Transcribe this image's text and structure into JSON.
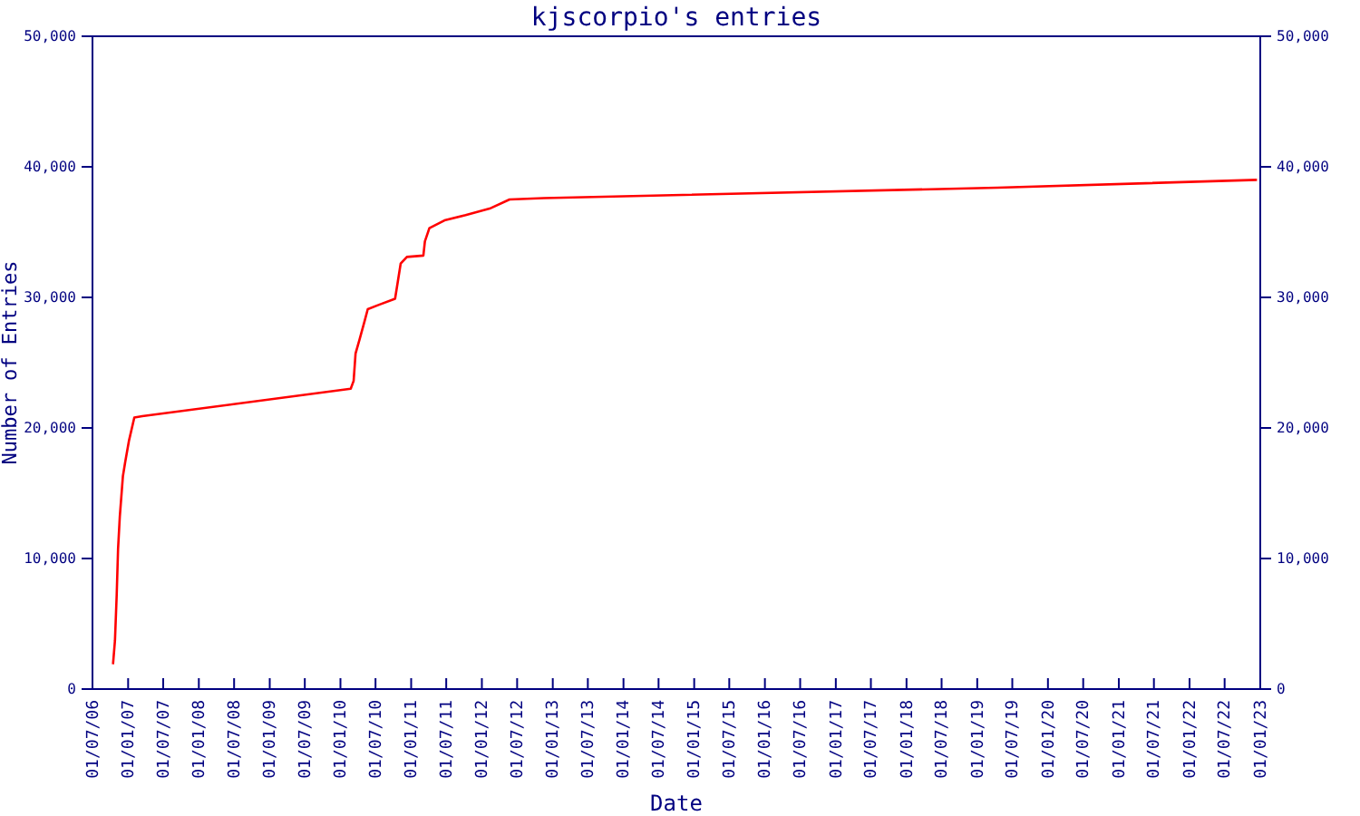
{
  "chart_data": {
    "type": "line",
    "title": "kjscorpio's entries",
    "xlabel": "Date",
    "ylabel": "Number of Entries",
    "x": [
      "2006-10-15",
      "2006-10-25",
      "2006-11-03",
      "2006-11-10",
      "2006-11-19",
      "2006-12-05",
      "2006-12-17",
      "2007-01-05",
      "2007-02-02",
      "2007-03-15",
      "2010-02-23",
      "2010-03-10",
      "2010-03-20",
      "2010-04-10",
      "2010-05-06",
      "2010-05-22",
      "2010-07-13",
      "2010-10-10",
      "2010-10-24",
      "2010-11-08",
      "2010-12-10",
      "2011-03-05",
      "2011-03-13",
      "2011-04-05",
      "2011-06-22",
      "2011-10-09",
      "2012-02-10",
      "2012-05-23",
      "2012-11-16",
      "2014-06-01",
      "2019-04-15",
      "2022-12-15"
    ],
    "series": [
      {
        "color": "#ff0000",
        "values": [
          1900,
          3700,
          7200,
          10700,
          13200,
          16300,
          17400,
          19000,
          20800,
          20900,
          23000,
          23600,
          25700,
          26800,
          28200,
          29100,
          29400,
          29900,
          31200,
          32600,
          33100,
          33200,
          34300,
          35300,
          35900,
          36300,
          36800,
          37500,
          37600,
          37800,
          38400,
          39000
        ]
      }
    ],
    "xlim": [
      "2006-07-01",
      "2023-01-01"
    ],
    "xticks": [
      {
        "value": "2006-07-01",
        "label": "01/07/06"
      },
      {
        "value": "2007-01-01",
        "label": "01/01/07"
      },
      {
        "value": "2007-07-01",
        "label": "01/07/07"
      },
      {
        "value": "2008-01-01",
        "label": "01/01/08"
      },
      {
        "value": "2008-07-01",
        "label": "01/07/08"
      },
      {
        "value": "2009-01-01",
        "label": "01/01/09"
      },
      {
        "value": "2009-07-01",
        "label": "01/07/09"
      },
      {
        "value": "2010-01-01",
        "label": "01/01/10"
      },
      {
        "value": "2010-07-01",
        "label": "01/07/10"
      },
      {
        "value": "2011-01-01",
        "label": "01/01/11"
      },
      {
        "value": "2011-07-01",
        "label": "01/07/11"
      },
      {
        "value": "2012-01-01",
        "label": "01/01/12"
      },
      {
        "value": "2012-07-01",
        "label": "01/07/12"
      },
      {
        "value": "2013-01-01",
        "label": "01/01/13"
      },
      {
        "value": "2013-07-01",
        "label": "01/07/13"
      },
      {
        "value": "2014-01-01",
        "label": "01/01/14"
      },
      {
        "value": "2014-07-01",
        "label": "01/07/14"
      },
      {
        "value": "2015-01-01",
        "label": "01/01/15"
      },
      {
        "value": "2015-07-01",
        "label": "01/07/15"
      },
      {
        "value": "2016-01-01",
        "label": "01/01/16"
      },
      {
        "value": "2016-07-01",
        "label": "01/07/16"
      },
      {
        "value": "2017-01-01",
        "label": "01/01/17"
      },
      {
        "value": "2017-07-01",
        "label": "01/07/17"
      },
      {
        "value": "2018-01-01",
        "label": "01/01/18"
      },
      {
        "value": "2018-07-01",
        "label": "01/07/18"
      },
      {
        "value": "2019-01-01",
        "label": "01/01/19"
      },
      {
        "value": "2019-07-01",
        "label": "01/07/19"
      },
      {
        "value": "2020-01-01",
        "label": "01/01/20"
      },
      {
        "value": "2020-07-01",
        "label": "01/07/20"
      },
      {
        "value": "2021-01-01",
        "label": "01/01/21"
      },
      {
        "value": "2021-07-01",
        "label": "01/07/21"
      },
      {
        "value": "2022-01-01",
        "label": "01/01/22"
      },
      {
        "value": "2022-07-01",
        "label": "01/07/22"
      },
      {
        "value": "2023-01-01",
        "label": "01/01/23"
      }
    ],
    "ylim": [
      0,
      50000
    ],
    "yticks": [
      0,
      {
        "value": 10000,
        "label": "10,000"
      },
      {
        "value": 20000,
        "label": "20,000"
      },
      {
        "value": 30000,
        "label": "30,000"
      },
      {
        "value": 40000,
        "label": "40,000"
      },
      {
        "value": 50000,
        "label": "50,000"
      }
    ],
    "y2lim": [
      0,
      50000
    ],
    "y2ticks": [
      0,
      {
        "value": 10000,
        "label": "10,000"
      },
      {
        "value": 20000,
        "label": "20,000"
      },
      {
        "value": 30000,
        "label": "30,000"
      },
      {
        "value": 40000,
        "label": "40,000"
      },
      {
        "value": 50000,
        "label": "50,000"
      }
    ],
    "grid": false
  }
}
